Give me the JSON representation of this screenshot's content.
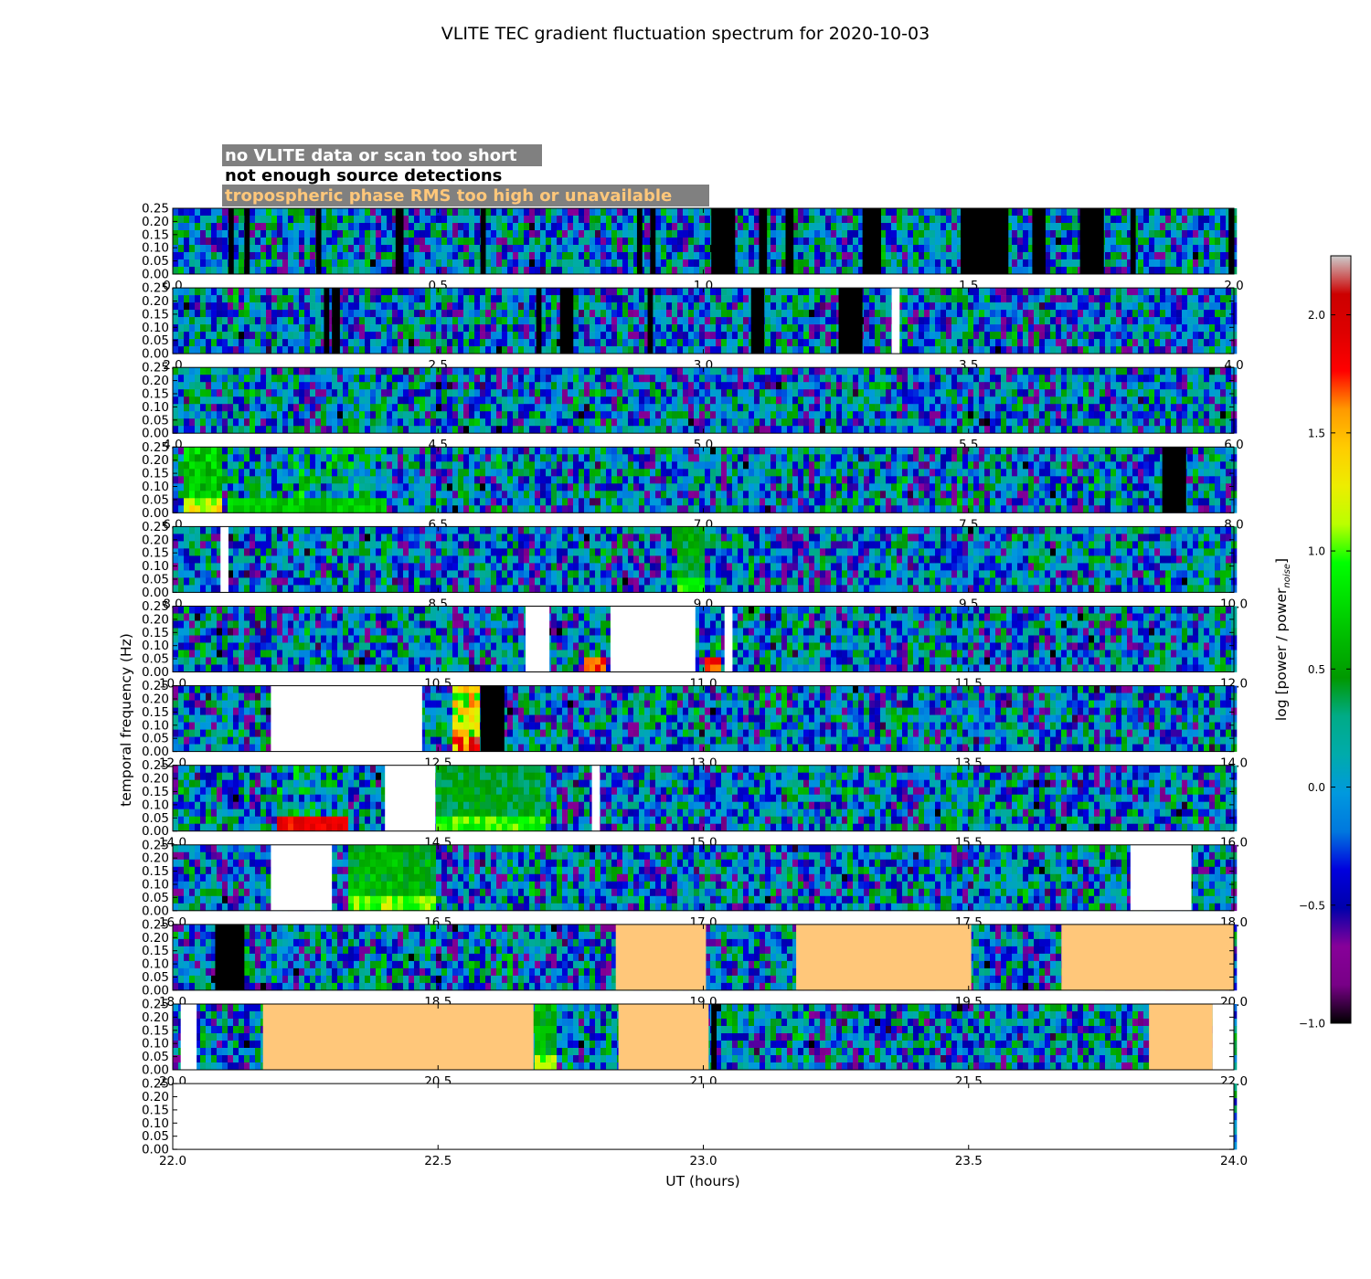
{
  "figure": {
    "title": "VLITE TEC gradient fluctuation spectrum for 2020-10-03",
    "xlabel": "UT (hours)",
    "ylabel": "temporal frequency (Hz)",
    "colorbar_label": "log [power / power",
    "colorbar_label_sub": "noise",
    "colorbar_label_end": "]"
  },
  "legend": {
    "no_data": "no VLITE data or scan too short",
    "no_detect": "not enough source detections",
    "tropo": "tropospheric phase RMS too high or unavailable"
  },
  "colors": {
    "no_data_bg": "#808080",
    "no_data_text": "#ffffff",
    "no_detect_text": "#000000",
    "tropo_fill": "#ffc77a",
    "gap_white": "#ffffff",
    "gap_black": "#000000"
  },
  "colorbar": {
    "ticks": [
      "2.0",
      "1.5",
      "1.0",
      "0.5",
      "0.0",
      "−0.5",
      "−1.0"
    ],
    "tick_values": [
      2.0,
      1.5,
      1.0,
      0.5,
      0.0,
      -0.5,
      -1.0
    ],
    "range": [
      -1.0,
      2.25
    ],
    "colormap": "nipy_spectral"
  },
  "chart_data": {
    "type": "heatmap",
    "title": "VLITE TEC gradient fluctuation spectrum for 2020-10-03",
    "xlabel": "UT (hours)",
    "ylabel": "temporal frequency (Hz)",
    "ylim": [
      0,
      0.25
    ],
    "ytick_labels": [
      "0.00",
      "0.05",
      "0.10",
      "0.15",
      "0.20",
      "0.25"
    ],
    "ytick_values": [
      0,
      0.05,
      0.1,
      0.15,
      0.2,
      0.25
    ],
    "clim": [
      -1.0,
      2.25
    ],
    "panels": [
      {
        "xlim": [
          0,
          2
        ],
        "xtick_labels": [
          "0.0",
          "0.5",
          "1.0",
          "1.5",
          "2.0"
        ],
        "masks": [
          {
            "kind": "black",
            "from": 0.105,
            "to": 0.115
          },
          {
            "kind": "black",
            "from": 0.135,
            "to": 0.145
          },
          {
            "kind": "black",
            "from": 0.27,
            "to": 0.28
          },
          {
            "kind": "black",
            "from": 0.42,
            "to": 0.435
          },
          {
            "kind": "black",
            "from": 0.58,
            "to": 0.59
          },
          {
            "kind": "black",
            "from": 0.875,
            "to": 0.885
          },
          {
            "kind": "black",
            "from": 0.9,
            "to": 0.91
          },
          {
            "kind": "black",
            "from": 1.015,
            "to": 1.06
          },
          {
            "kind": "black",
            "from": 1.105,
            "to": 1.12
          },
          {
            "kind": "black",
            "from": 1.155,
            "to": 1.17
          },
          {
            "kind": "black",
            "from": 1.3,
            "to": 1.335
          },
          {
            "kind": "black",
            "from": 1.485,
            "to": 1.575
          },
          {
            "kind": "black",
            "from": 1.62,
            "to": 1.645
          },
          {
            "kind": "black",
            "from": 1.71,
            "to": 1.755
          },
          {
            "kind": "black",
            "from": 1.805,
            "to": 1.815
          },
          {
            "kind": "black",
            "from": 1.99,
            "to": 2.0
          }
        ]
      },
      {
        "xlim": [
          2,
          4
        ],
        "xtick_labels": [
          "2.0",
          "2.5",
          "3.0",
          "3.5",
          "4.0"
        ],
        "masks": [
          {
            "kind": "black",
            "from": 2.285,
            "to": 2.295
          },
          {
            "kind": "black",
            "from": 2.3,
            "to": 2.315
          },
          {
            "kind": "black",
            "from": 2.685,
            "to": 2.695
          },
          {
            "kind": "black",
            "from": 2.73,
            "to": 2.755
          },
          {
            "kind": "black",
            "from": 2.895,
            "to": 2.905
          },
          {
            "kind": "black",
            "from": 3.09,
            "to": 3.115
          },
          {
            "kind": "black",
            "from": 3.255,
            "to": 3.3
          },
          {
            "kind": "white",
            "from": 3.355,
            "to": 3.37
          }
        ]
      },
      {
        "xlim": [
          4,
          6
        ],
        "xtick_labels": [
          "4.0",
          "4.5",
          "5.0",
          "5.5",
          "6.0"
        ],
        "masks": []
      },
      {
        "xlim": [
          6,
          8
        ],
        "xtick_labels": [
          "6.0",
          "6.5",
          "7.0",
          "7.5",
          "8.0"
        ],
        "masks": [
          {
            "kind": "black",
            "from": 7.865,
            "to": 7.91
          }
        ]
      },
      {
        "xlim": [
          8,
          10
        ],
        "xtick_labels": [
          "8.0",
          "8.5",
          "9.0",
          "9.5",
          "10.0"
        ],
        "masks": [
          {
            "kind": "white",
            "from": 8.09,
            "to": 8.105
          }
        ]
      },
      {
        "xlim": [
          10,
          12
        ],
        "xtick_labels": [
          "10.0",
          "10.5",
          "11.0",
          "11.5",
          "12.0"
        ],
        "masks": [
          {
            "kind": "white",
            "from": 10.665,
            "to": 10.71
          },
          {
            "kind": "white",
            "from": 10.825,
            "to": 10.985
          },
          {
            "kind": "white",
            "from": 11.04,
            "to": 11.055
          }
        ]
      },
      {
        "xlim": [
          12,
          14
        ],
        "xtick_labels": [
          "12.0",
          "12.5",
          "13.0",
          "13.5",
          "14.0"
        ],
        "masks": [
          {
            "kind": "white",
            "from": 12.185,
            "to": 12.47
          },
          {
            "kind": "black",
            "from": 12.58,
            "to": 12.625
          }
        ]
      },
      {
        "xlim": [
          14,
          16
        ],
        "xtick_labels": [
          "14.0",
          "14.5",
          "15.0",
          "15.5",
          "16.0"
        ],
        "masks": [
          {
            "kind": "white",
            "from": 14.4,
            "to": 14.495
          },
          {
            "kind": "white",
            "from": 14.79,
            "to": 14.805
          }
        ]
      },
      {
        "xlim": [
          16,
          18
        ],
        "xtick_labels": [
          "16.0",
          "16.5",
          "17.0",
          "17.5",
          "18.0"
        ],
        "masks": [
          {
            "kind": "white",
            "from": 16.185,
            "to": 16.3
          },
          {
            "kind": "white",
            "from": 17.805,
            "to": 17.92
          }
        ]
      },
      {
        "xlim": [
          18,
          20
        ],
        "xtick_labels": [
          "18.0",
          "18.5",
          "19.0",
          "19.5",
          "20.0"
        ],
        "masks": [
          {
            "kind": "black",
            "from": 18.08,
            "to": 18.135
          },
          {
            "kind": "tropo",
            "from": 18.835,
            "to": 19.005
          },
          {
            "kind": "tropo",
            "from": 19.175,
            "to": 19.505
          },
          {
            "kind": "tropo",
            "from": 19.675,
            "to": 20.0
          }
        ]
      },
      {
        "xlim": [
          20,
          22
        ],
        "xtick_labels": [
          "20.0",
          "20.5",
          "21.0",
          "21.5",
          "22.0"
        ],
        "masks": [
          {
            "kind": "white",
            "from": 20.015,
            "to": 20.045
          },
          {
            "kind": "tropo",
            "from": 20.17,
            "to": 20.68
          },
          {
            "kind": "tropo",
            "from": 20.84,
            "to": 21.01
          },
          {
            "kind": "black",
            "from": 21.015,
            "to": 21.025
          },
          {
            "kind": "tropo",
            "from": 21.84,
            "to": 21.96
          },
          {
            "kind": "white",
            "from": 21.96,
            "to": 22.0
          }
        ]
      },
      {
        "xlim": [
          22,
          24
        ],
        "xtick_labels": [
          "22.0",
          "22.5",
          "23.0",
          "23.5",
          "24.0"
        ],
        "masks": [
          {
            "kind": "white",
            "from": 22.0,
            "to": 24.0
          }
        ]
      }
    ],
    "bursts": [
      {
        "from": 6.02,
        "to": 6.09,
        "level": 0.9
      },
      {
        "from": 6.1,
        "to": 6.4,
        "level": 0.55,
        "low_only": true
      },
      {
        "from": 8.95,
        "to": 9.0,
        "level": 0.6
      },
      {
        "from": 10.78,
        "to": 10.82,
        "level": 1.6,
        "low_only": true
      },
      {
        "from": 11.0,
        "to": 11.03,
        "level": 1.6,
        "low_only": true
      },
      {
        "from": 12.53,
        "to": 12.58,
        "level": 1.5
      },
      {
        "from": 14.2,
        "to": 14.33,
        "level": 1.7,
        "low_only": true
      },
      {
        "from": 14.5,
        "to": 14.7,
        "level": 0.55
      },
      {
        "from": 16.33,
        "to": 16.5,
        "level": 0.7
      },
      {
        "from": 20.68,
        "to": 20.72,
        "level": 0.7
      }
    ],
    "noise_level_range": [
      -0.7,
      0.6
    ]
  }
}
